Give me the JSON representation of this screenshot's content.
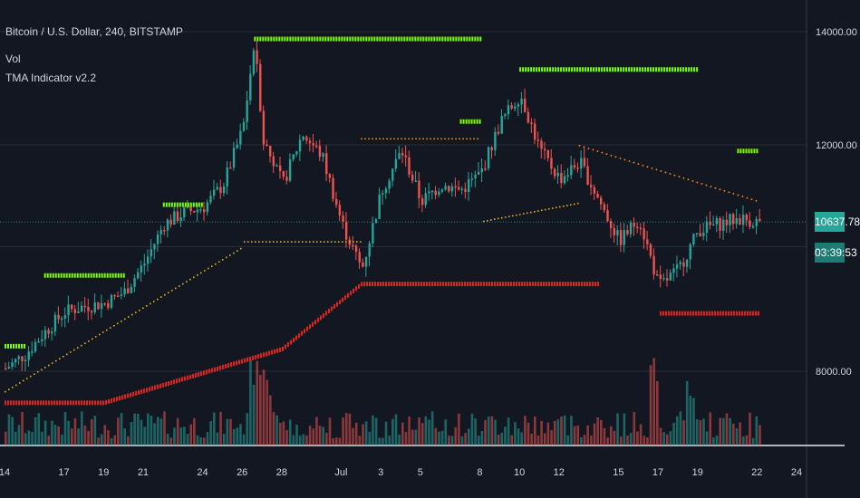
{
  "header": {
    "symbol_line": "Bitcoin / U.S. Dollar, 240, BITSTAMP",
    "indicator_1": "Vol",
    "indicator_2": "TMA Indicator v2.2"
  },
  "price_tags": {
    "last_price": "10637.78",
    "countdown": "03:39:53"
  },
  "colors": {
    "background": "#131722",
    "grid": "#2a2e39",
    "text": "#d1d4dc",
    "bull": "#26a69a",
    "bear": "#ef5350",
    "tma_upper": "#7cfc00",
    "tma_lower": "#e0211d",
    "tma_mid": "#e6b200",
    "tma_orange": "#ff8c1a",
    "accent_tag": "#26a69a"
  },
  "chart_data": {
    "type": "line",
    "title": "Bitcoin / U.S. Dollar, 240, BITSTAMP",
    "xlabel": "",
    "ylabel": "",
    "y_ticks": [
      14000,
      12000,
      8000
    ],
    "y_tick_labels": [
      "14000.00",
      "12000.00",
      "8000.00"
    ],
    "ylim": [
      6650,
      14320
    ],
    "x_ticks": [
      "14",
      "17",
      "19",
      "21",
      "24",
      "26",
      "28",
      "Jul",
      "3",
      "5",
      "8",
      "10",
      "12",
      "15",
      "17",
      "19",
      "22",
      "24"
    ],
    "x_range_days": [
      "2019-06-14",
      "2019-07-24"
    ],
    "grid": true,
    "last_price": 10637.78,
    "series": [
      {
        "name": "Bitcoin / U.S. Dollar",
        "values": [
          {
            "d": "06-14",
            "p": 8050
          },
          {
            "d": "06-15",
            "p": 8300
          },
          {
            "d": "06-16",
            "p": 8700
          },
          {
            "d": "06-17",
            "p": 9050
          },
          {
            "d": "06-18",
            "p": 9150
          },
          {
            "d": "06-19",
            "p": 9200
          },
          {
            "d": "06-20",
            "p": 9400
          },
          {
            "d": "06-21",
            "p": 9900
          },
          {
            "d": "06-22",
            "p": 10600
          },
          {
            "d": "06-23",
            "p": 10800
          },
          {
            "d": "06-24",
            "p": 10900
          },
          {
            "d": "06-25",
            "p": 11300
          },
          {
            "d": "06-26",
            "p": 12300
          },
          {
            "d": "06-26.6",
            "p": 13900
          },
          {
            "d": "06-27",
            "p": 12100
          },
          {
            "d": "06-28",
            "p": 11300
          },
          {
            "d": "06-29",
            "p": 12200
          },
          {
            "d": "06-30",
            "p": 11800
          },
          {
            "d": "07-01",
            "p": 10600
          },
          {
            "d": "07-02",
            "p": 9800
          },
          {
            "d": "07-03",
            "p": 11200
          },
          {
            "d": "07-04",
            "p": 11900
          },
          {
            "d": "07-05",
            "p": 11000
          },
          {
            "d": "07-06",
            "p": 11300
          },
          {
            "d": "07-07",
            "p": 11200
          },
          {
            "d": "07-08",
            "p": 11500
          },
          {
            "d": "07-09",
            "p": 12400
          },
          {
            "d": "07-10",
            "p": 12900
          },
          {
            "d": "07-11",
            "p": 11900
          },
          {
            "d": "07-12",
            "p": 11400
          },
          {
            "d": "07-13",
            "p": 11700
          },
          {
            "d": "07-14",
            "p": 11000
          },
          {
            "d": "07-15",
            "p": 10300
          },
          {
            "d": "07-16",
            "p": 10700
          },
          {
            "d": "07-17",
            "p": 9500
          },
          {
            "d": "07-18",
            "p": 9800
          },
          {
            "d": "07-19",
            "p": 10500
          },
          {
            "d": "07-20",
            "p": 10600
          },
          {
            "d": "07-21",
            "p": 10700
          },
          {
            "d": "07-22",
            "p": 10640
          }
        ]
      },
      {
        "name": "",
        "values": [
          {
            "d": "06-26.6",
            "p": 13880
          },
          {
            "d": "07-08",
            "p": 13880
          },
          {
            "d": "07-10",
            "p": 13340
          },
          {
            "d": "07-19",
            "p": 13340
          },
          {
            "d": "07-21",
            "p": 11900
          },
          {
            "d": "07-22",
            "p": 11900
          }
        ]
      },
      {
        "name": "",
        "values": [
          {
            "d": "06-14",
            "p": 7450
          },
          {
            "d": "06-22",
            "p": 7650
          },
          {
            "d": "06-28",
            "p": 8400
          },
          {
            "d": "07-02",
            "p": 9550
          },
          {
            "d": "07-08",
            "p": 9550
          },
          {
            "d": "07-14",
            "p": 9550
          },
          {
            "d": "07-17",
            "p": 9030
          },
          {
            "d": "07-22",
            "p": 9030
          }
        ]
      }
    ]
  }
}
